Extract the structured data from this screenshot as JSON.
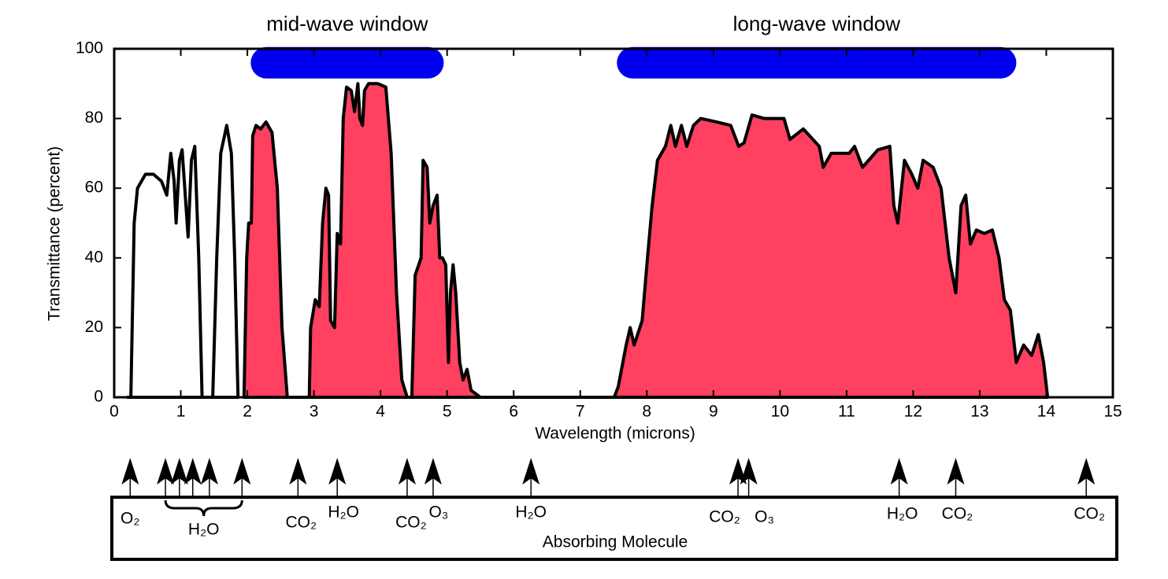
{
  "chart_data": {
    "type": "area",
    "xlabel": "Wavelength (microns)",
    "ylabel": "Transmittance (percent)",
    "xlim": [
      0,
      15
    ],
    "xticks": [
      0,
      1,
      2,
      3,
      4,
      5,
      6,
      7,
      8,
      9,
      10,
      11,
      12,
      13,
      14,
      15
    ],
    "ylim": [
      0,
      100
    ],
    "yticks": [
      0,
      20,
      40,
      60,
      80,
      100
    ],
    "series": [
      {
        "color": "#ffffff",
        "x": [
          0.2,
          0.25,
          0.27,
          0.3,
          0.35,
          0.47,
          0.59,
          0.71,
          0.79,
          0.85,
          0.9,
          0.93,
          0.98,
          1.02,
          1.06,
          1.11,
          1.16,
          1.21,
          1.27,
          1.32,
          1.48,
          1.54,
          1.6,
          1.69,
          1.76,
          1.81,
          1.86
        ],
        "values": [
          0,
          0,
          20,
          50,
          60,
          64,
          64,
          62,
          58,
          70,
          62,
          50,
          68,
          71,
          60,
          46,
          68,
          72,
          40,
          0,
          0,
          40,
          70,
          78,
          70,
          40,
          0
        ]
      },
      {
        "color": "#ff4060",
        "x": [
          1.95,
          1.99,
          2.02,
          2.06,
          2.08,
          2.13,
          2.2,
          2.28,
          2.37,
          2.45,
          2.52,
          2.6,
          2.93,
          2.95,
          3.02,
          3.08,
          3.13,
          3.18,
          3.22,
          3.25,
          3.31,
          3.35,
          3.4,
          3.44,
          3.49,
          3.56,
          3.61,
          3.66,
          3.69,
          3.73,
          3.76,
          3.82,
          3.96,
          4.08,
          4.16,
          4.24,
          4.32,
          4.4,
          4.47,
          4.52,
          4.61,
          4.64,
          4.7,
          4.74,
          4.79,
          4.85,
          4.89,
          4.93,
          4.98,
          5.02,
          5.05,
          5.09,
          5.13,
          5.19,
          5.24,
          5.3,
          5.36,
          5.5,
          7.51,
          7.57,
          7.69,
          7.75,
          7.81,
          7.93,
          8.01,
          8.08,
          8.16,
          8.28,
          8.36,
          8.43,
          8.52,
          8.6,
          8.7,
          8.81,
          9.05,
          9.26,
          9.38,
          9.46,
          9.58,
          9.76,
          10.06,
          10.15,
          10.35,
          10.59,
          10.65,
          10.77,
          11.04,
          11.12,
          11.24,
          11.47,
          11.65,
          11.71,
          11.77,
          11.87,
          11.98,
          12.07,
          12.15,
          12.3,
          12.42,
          12.54,
          12.64,
          12.72,
          12.79,
          12.86,
          12.95,
          13.07,
          13.19,
          13.29,
          13.37,
          13.46,
          13.55,
          13.66,
          13.78,
          13.88,
          13.96,
          14.02
        ],
        "values": [
          0,
          40,
          50,
          50,
          75,
          78,
          77,
          79,
          76,
          60,
          20,
          0,
          0,
          20,
          28,
          26,
          50,
          60,
          58,
          22,
          20,
          47,
          44,
          80,
          89,
          88,
          82,
          90,
          80,
          78,
          88,
          90,
          90,
          89,
          70,
          30,
          5,
          0,
          0,
          35,
          40,
          68,
          66,
          50,
          55,
          58,
          40,
          40,
          38,
          10,
          30,
          38,
          30,
          10,
          5,
          8,
          2,
          0,
          0,
          3,
          15,
          20,
          15,
          22,
          40,
          55,
          68,
          72,
          78,
          72,
          78,
          72,
          78,
          80,
          79,
          78,
          72,
          73,
          81,
          80,
          80,
          74,
          77,
          72,
          66,
          70,
          70,
          72,
          66,
          71,
          72,
          55,
          50,
          68,
          64,
          60,
          68,
          66,
          60,
          40,
          30,
          55,
          58,
          44,
          48,
          47,
          48,
          40,
          28,
          25,
          10,
          15,
          12,
          18,
          10,
          0
        ]
      }
    ],
    "windows": [
      {
        "label": "mid-wave window",
        "color": "#0000ee",
        "xrange": [
          2.05,
          4.95
        ],
        "y": 96
      },
      {
        "label": "long-wave window",
        "color": "#0000ee",
        "xrange": [
          7.55,
          13.55
        ],
        "y": 96
      }
    ],
    "absorbers_title": "Absorbing Molecule",
    "absorbers": [
      {
        "label": "O₂",
        "x": 0.24
      },
      {
        "label": "CO₂",
        "x": 2.76
      },
      {
        "label": "H₂O",
        "x": 3.35
      },
      {
        "label": "CO₂",
        "x": 4.4
      },
      {
        "label": "O₃",
        "x": 4.79
      },
      {
        "label": "H₂O",
        "x": 6.26
      },
      {
        "label": "CO₂",
        "x": 9.37
      },
      {
        "label": "O₃",
        "x": 9.53
      },
      {
        "label": "H₂O",
        "x": 11.79
      },
      {
        "label": "CO₂",
        "x": 12.64
      },
      {
        "label": "CO₂",
        "x": 14.6
      }
    ],
    "absorber_group": {
      "label": "H₂O",
      "x": [
        0.77,
        0.98,
        1.18,
        1.43,
        1.92
      ]
    }
  }
}
